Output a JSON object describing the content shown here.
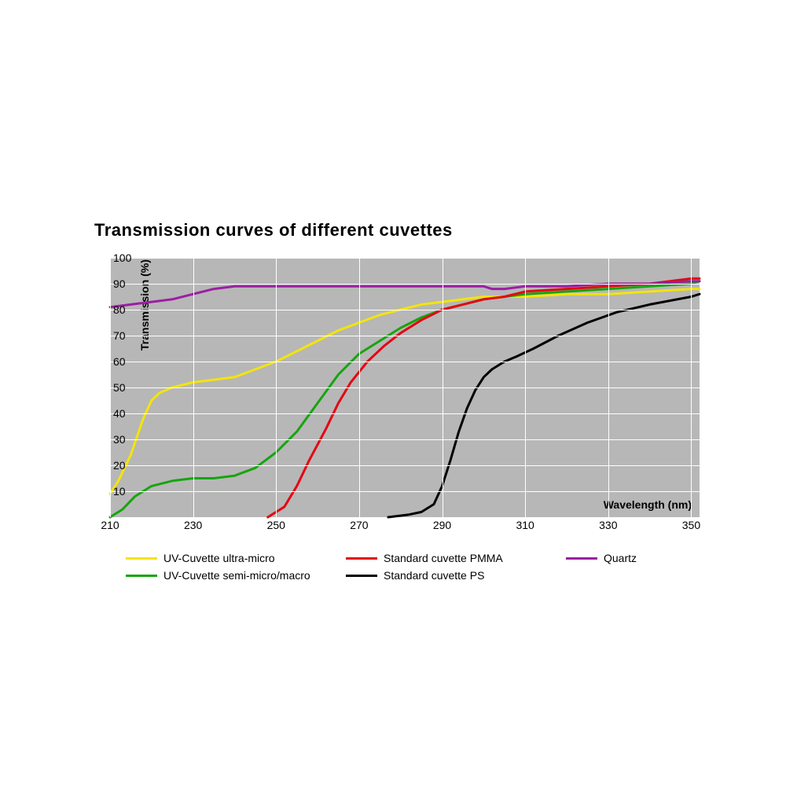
{
  "chart": {
    "type": "line",
    "title": "Transmission curves of different cuvettes",
    "background_color": "#b7b7b7",
    "grid_color": "#ffffff",
    "line_width": 3,
    "xlabel": "Wavelength (nm)",
    "ylabel": "Transmission (%)",
    "label_fontsize": 14,
    "title_fontsize": 22,
    "xlim": [
      210,
      352
    ],
    "ylim": [
      0,
      100
    ],
    "xticks": [
      210,
      230,
      250,
      270,
      290,
      310,
      330,
      350
    ],
    "yticks": [
      10,
      20,
      30,
      40,
      50,
      60,
      70,
      80,
      90,
      100
    ],
    "series": [
      {
        "name": "UV-Cuvette ultra-micro",
        "color": "#f4e409",
        "data": [
          [
            210,
            9
          ],
          [
            212,
            14
          ],
          [
            215,
            24
          ],
          [
            218,
            38
          ],
          [
            220,
            45
          ],
          [
            222,
            48
          ],
          [
            225,
            50
          ],
          [
            230,
            52
          ],
          [
            235,
            53
          ],
          [
            240,
            54
          ],
          [
            245,
            57
          ],
          [
            250,
            60
          ],
          [
            255,
            64
          ],
          [
            260,
            68
          ],
          [
            265,
            72
          ],
          [
            270,
            75
          ],
          [
            275,
            78
          ],
          [
            280,
            80
          ],
          [
            285,
            82
          ],
          [
            290,
            83
          ],
          [
            295,
            84
          ],
          [
            300,
            85
          ],
          [
            310,
            85
          ],
          [
            320,
            86
          ],
          [
            330,
            86
          ],
          [
            340,
            87
          ],
          [
            350,
            88
          ],
          [
            352,
            88
          ]
        ]
      },
      {
        "name": "UV-Cuvette semi-micro/macro",
        "color": "#17a40e",
        "data": [
          [
            210,
            0
          ],
          [
            213,
            3
          ],
          [
            216,
            8
          ],
          [
            220,
            12
          ],
          [
            225,
            14
          ],
          [
            230,
            15
          ],
          [
            235,
            15
          ],
          [
            240,
            16
          ],
          [
            245,
            19
          ],
          [
            250,
            25
          ],
          [
            255,
            33
          ],
          [
            260,
            44
          ],
          [
            265,
            55
          ],
          [
            270,
            63
          ],
          [
            275,
            68
          ],
          [
            280,
            73
          ],
          [
            285,
            77
          ],
          [
            290,
            80
          ],
          [
            295,
            82
          ],
          [
            300,
            84
          ],
          [
            310,
            86
          ],
          [
            320,
            87
          ],
          [
            330,
            88
          ],
          [
            340,
            89
          ],
          [
            350,
            90
          ],
          [
            352,
            91
          ]
        ]
      },
      {
        "name": "Standard cuvette PMMA",
        "color": "#e30613",
        "data": [
          [
            248,
            0
          ],
          [
            252,
            4
          ],
          [
            255,
            12
          ],
          [
            258,
            22
          ],
          [
            262,
            34
          ],
          [
            265,
            44
          ],
          [
            268,
            52
          ],
          [
            272,
            60
          ],
          [
            276,
            66
          ],
          [
            280,
            71
          ],
          [
            285,
            76
          ],
          [
            290,
            80
          ],
          [
            295,
            82
          ],
          [
            300,
            84
          ],
          [
            305,
            85
          ],
          [
            310,
            87
          ],
          [
            320,
            88
          ],
          [
            330,
            89
          ],
          [
            340,
            90
          ],
          [
            350,
            92
          ],
          [
            352,
            92
          ]
        ]
      },
      {
        "name": "Standard cuvette PS",
        "color": "#000000",
        "data": [
          [
            277,
            0
          ],
          [
            282,
            1
          ],
          [
            285,
            2
          ],
          [
            288,
            5
          ],
          [
            290,
            12
          ],
          [
            292,
            22
          ],
          [
            294,
            33
          ],
          [
            296,
            42
          ],
          [
            298,
            49
          ],
          [
            300,
            54
          ],
          [
            302,
            57
          ],
          [
            305,
            60
          ],
          [
            308,
            62
          ],
          [
            312,
            65
          ],
          [
            318,
            70
          ],
          [
            325,
            75
          ],
          [
            332,
            79
          ],
          [
            340,
            82
          ],
          [
            350,
            85
          ],
          [
            352,
            86
          ]
        ]
      },
      {
        "name": "Quartz",
        "color": "#9b1fa2",
        "data": [
          [
            210,
            81
          ],
          [
            215,
            82
          ],
          [
            220,
            83
          ],
          [
            225,
            84
          ],
          [
            230,
            86
          ],
          [
            235,
            88
          ],
          [
            240,
            89
          ],
          [
            250,
            89
          ],
          [
            260,
            89
          ],
          [
            270,
            89
          ],
          [
            280,
            89
          ],
          [
            290,
            89
          ],
          [
            300,
            89
          ],
          [
            302,
            88
          ],
          [
            305,
            88
          ],
          [
            310,
            89
          ],
          [
            320,
            89
          ],
          [
            330,
            90
          ],
          [
            340,
            90
          ],
          [
            350,
            91
          ],
          [
            352,
            91
          ]
        ]
      }
    ],
    "legend": {
      "layout": "3col",
      "items": [
        {
          "series": 0,
          "label": "UV-Cuvette ultra-micro"
        },
        {
          "series": 2,
          "label": "Standard cuvette PMMA"
        },
        {
          "series": 4,
          "label": "Quartz"
        },
        {
          "series": 1,
          "label": "UV-Cuvette semi-micro/macro"
        },
        {
          "series": 3,
          "label": "Standard cuvette PS"
        }
      ]
    }
  }
}
